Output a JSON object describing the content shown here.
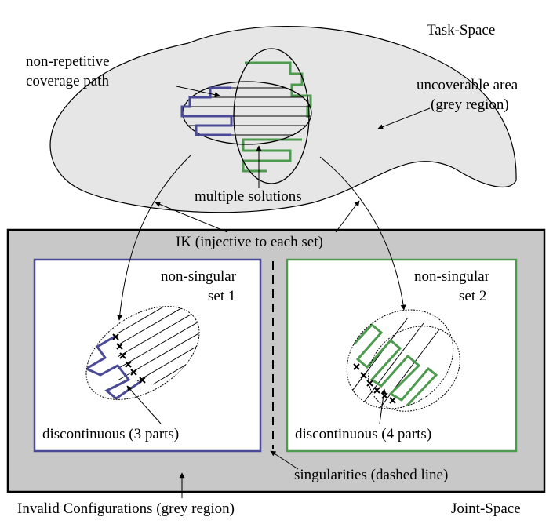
{
  "labels": {
    "task_space": "Task-Space",
    "coverage_path_line1": "non-repetitive",
    "coverage_path_line2": "coverage path",
    "uncoverable_line1": "uncoverable area",
    "uncoverable_line2": "(grey region)",
    "multiple_solutions": "multiple solutions",
    "ik": "IK (injective to each set)",
    "set1_line1": "non-singular",
    "set1_line2": "set 1",
    "set2_line1": "non-singular",
    "set2_line2": "set 2",
    "discont_3": "discontinuous (3 parts)",
    "discont_4": "discontinuous (4 parts)",
    "singularities": "singularities (dashed line)",
    "invalid": "Invalid Configurations (grey region)",
    "joint_space": "Joint-Space"
  },
  "colors": {
    "grey_region": "#e6e6e6",
    "joint_grey": "#c8c8c8",
    "set1": "#4a4a96",
    "set2": "#4e9a4e"
  }
}
